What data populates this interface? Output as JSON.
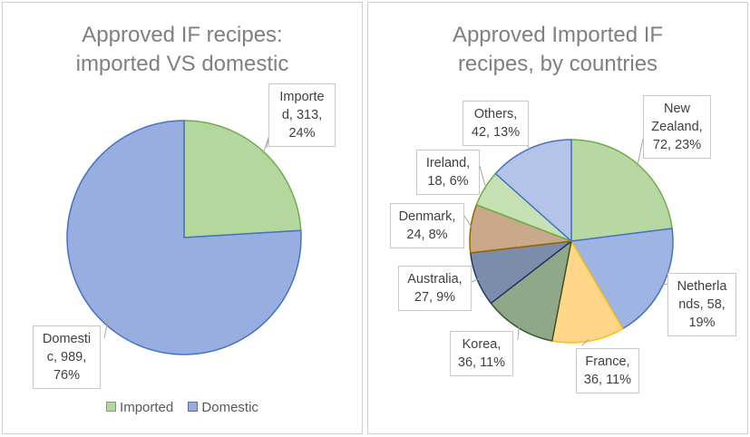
{
  "chart_data": [
    {
      "type": "pie",
      "title_line1": "Approved IF recipes:",
      "title_line2": "imported VS domestic",
      "slices": [
        {
          "name": "Imported",
          "value": 313,
          "percent": 24,
          "label_lines": [
            "Importe",
            "d, 313,",
            "24%"
          ],
          "color": "#b4d7a0",
          "stroke": "#70ad47"
        },
        {
          "name": "Domestic",
          "value": 989,
          "percent": 76,
          "label_lines": [
            "Domesti",
            "c, 989,",
            "76%"
          ],
          "color": "#98aee0",
          "stroke": "#4472c4"
        }
      ],
      "legend": [
        "Imported",
        "Domestic"
      ],
      "legend_position": "bottom"
    },
    {
      "type": "pie",
      "title_line1": "Approved Imported IF",
      "title_line2": "recipes, by countries",
      "slices": [
        {
          "name": "New Zealand",
          "value": 72,
          "percent": 23,
          "label_lines": [
            "New",
            "Zealand,",
            "72, 23%"
          ],
          "color": "#b7d7a3",
          "stroke": "#70ad47"
        },
        {
          "name": "Netherlands",
          "value": 58,
          "percent": 19,
          "label_lines": [
            "Netherla",
            "nds, 58,",
            "19%"
          ],
          "color": "#9eb4e2",
          "stroke": "#4472c4"
        },
        {
          "name": "France",
          "value": 36,
          "percent": 11,
          "label_lines": [
            "France,",
            "36, 11%"
          ],
          "color": "#ffd68a",
          "stroke": "#ffc000"
        },
        {
          "name": "Korea",
          "value": 36,
          "percent": 11,
          "label_lines": [
            "Korea,",
            "36, 11%"
          ],
          "color": "#8ea889",
          "stroke": "#375623"
        },
        {
          "name": "Australia",
          "value": 27,
          "percent": 9,
          "label_lines": [
            "Australia,",
            "27, 9%"
          ],
          "color": "#7c8dab",
          "stroke": "#203864"
        },
        {
          "name": "Denmark",
          "value": 24,
          "percent": 8,
          "label_lines": [
            "Denmark,",
            "24, 8%"
          ],
          "color": "#c9a98a",
          "stroke": "#9c6500"
        },
        {
          "name": "Ireland",
          "value": 18,
          "percent": 6,
          "label_lines": [
            "Ireland,",
            "18, 6%"
          ],
          "color": "#c6e2b5",
          "stroke": "#70ad47"
        },
        {
          "name": "Others",
          "value": 42,
          "percent": 13,
          "label_lines": [
            "Others,",
            "42, 13%"
          ],
          "color": "#b4c4e8",
          "stroke": "#4472c4"
        }
      ]
    }
  ]
}
